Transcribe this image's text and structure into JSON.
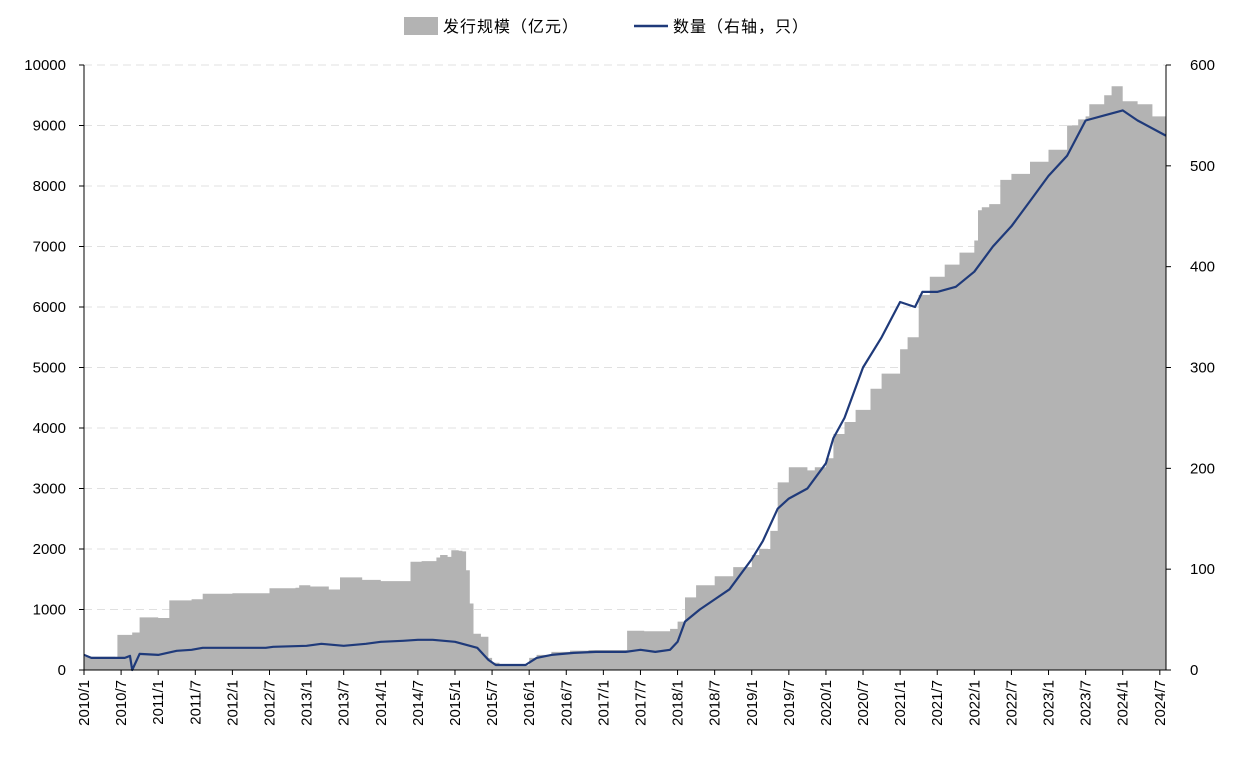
{
  "chart_data": {
    "type": "area",
    "colors": {
      "area": "#b3b3b3",
      "line": "#1f3a7a",
      "grid": "#e0e0e0",
      "axis": "#000000"
    },
    "legend": {
      "placement": "top-center",
      "items": [
        {
          "label": "发行规模（亿元）",
          "kind": "area"
        },
        {
          "label": "数量（右轴，只）",
          "kind": "line"
        }
      ]
    },
    "y_left": {
      "min": 0,
      "max": 10000,
      "ticks": [
        "0",
        "1000",
        "2000",
        "3000",
        "4000",
        "5000",
        "6000",
        "7000",
        "8000",
        "9000",
        "10000"
      ]
    },
    "y_right": {
      "min": 0,
      "max": 600,
      "ticks": [
        "0",
        "100",
        "200",
        "300",
        "400",
        "500",
        "600"
      ]
    },
    "x_range": [
      2010.0,
      2024.5833
    ],
    "x_ticks": [
      "2010/1",
      "2010/7",
      "2011/1",
      "2011/7",
      "2012/1",
      "2012/7",
      "2013/1",
      "2013/7",
      "2014/1",
      "2014/7",
      "2015/1",
      "2015/7",
      "2016/1",
      "2016/7",
      "2017/1",
      "2017/7",
      "2018/1",
      "2018/7",
      "2019/1",
      "2019/7",
      "2020/1",
      "2020/7",
      "2021/1",
      "2021/7",
      "2022/1",
      "2022/7",
      "2023/1",
      "2023/7",
      "2024/1",
      "2024/7"
    ],
    "grid": "horizontal-dashed",
    "series": [
      {
        "name": "发行规模（亿元）",
        "axis": "left",
        "type": "area",
        "x": [
          2010.0,
          2010.42,
          2010.45,
          2010.65,
          2010.75,
          2011.0,
          2011.15,
          2011.45,
          2011.6,
          2012.0,
          2012.45,
          2012.5,
          2012.85,
          2012.9,
          2013.05,
          2013.3,
          2013.45,
          2013.75,
          2014.0,
          2014.4,
          2014.55,
          2014.75,
          2014.8,
          2014.9,
          2014.95,
          2015.05,
          2015.1,
          2015.15,
          2015.2,
          2015.25,
          2015.35,
          2015.45,
          2015.5,
          2015.6,
          2015.95,
          2016.0,
          2016.1,
          2016.3,
          2016.55,
          2016.8,
          2017.0,
          2017.3,
          2017.32,
          2017.55,
          2017.9,
          2018.0,
          2018.1,
          2018.25,
          2018.5,
          2018.75,
          2019.0,
          2019.1,
          2019.25,
          2019.35,
          2019.5,
          2019.75,
          2019.85,
          2020.0,
          2020.1,
          2020.25,
          2020.4,
          2020.5,
          2020.6,
          2020.75,
          2021.0,
          2021.1,
          2021.25,
          2021.4,
          2021.6,
          2021.8,
          2022.0,
          2022.05,
          2022.1,
          2022.2,
          2022.35,
          2022.5,
          2022.75,
          2023.0,
          2023.25,
          2023.4,
          2023.5,
          2023.55,
          2023.75,
          2023.85,
          2024.0,
          2024.2,
          2024.4,
          2024.58
        ],
        "y": [
          220,
          200,
          580,
          620,
          870,
          860,
          1150,
          1170,
          1260,
          1270,
          1270,
          1350,
          1360,
          1400,
          1380,
          1330,
          1530,
          1490,
          1470,
          1790,
          1800,
          1860,
          1900,
          1870,
          1980,
          1970,
          1960,
          1650,
          1100,
          600,
          550,
          200,
          120,
          80,
          80,
          200,
          250,
          300,
          320,
          330,
          330,
          330,
          650,
          640,
          680,
          800,
          1200,
          1400,
          1550,
          1700,
          1900,
          2000,
          2300,
          3100,
          3350,
          3300,
          3350,
          3500,
          3900,
          4100,
          4300,
          4300,
          4650,
          4900,
          5300,
          5500,
          6200,
          6500,
          6700,
          6900,
          7100,
          7600,
          7650,
          7700,
          8100,
          8200,
          8400,
          8600,
          9000,
          9100,
          9150,
          9350,
          9500,
          9650,
          9400,
          9350,
          9150,
          9050
        ]
      },
      {
        "name": "数量（右轴，只）",
        "axis": "right",
        "type": "line",
        "x": [
          2010.0,
          2010.1,
          2010.4,
          2010.55,
          2010.62,
          2010.65,
          2010.75,
          2011.0,
          2011.25,
          2011.45,
          2011.6,
          2012.0,
          2012.45,
          2012.55,
          2013.0,
          2013.2,
          2013.5,
          2013.8,
          2014.0,
          2014.3,
          2014.5,
          2014.7,
          2015.0,
          2015.15,
          2015.3,
          2015.45,
          2015.55,
          2015.95,
          2016.1,
          2016.3,
          2016.6,
          2016.9,
          2017.3,
          2017.5,
          2017.7,
          2017.9,
          2018.0,
          2018.1,
          2018.3,
          2018.5,
          2018.7,
          2018.8,
          2019.0,
          2019.15,
          2019.35,
          2019.5,
          2019.75,
          2020.0,
          2020.1,
          2020.25,
          2020.5,
          2020.75,
          2021.0,
          2021.2,
          2021.3,
          2021.5,
          2021.75,
          2022.0,
          2022.25,
          2022.5,
          2022.75,
          2023.0,
          2023.25,
          2023.5,
          2023.75,
          2024.0,
          2024.2,
          2024.58
        ],
        "y": [
          15,
          12,
          12,
          12,
          14,
          0,
          16,
          15,
          19,
          20,
          22,
          22,
          22,
          23,
          24,
          26,
          24,
          26,
          28,
          29,
          30,
          30,
          28,
          25,
          22,
          10,
          5,
          5,
          12,
          15,
          17,
          18,
          18,
          20,
          18,
          20,
          28,
          48,
          60,
          70,
          80,
          90,
          110,
          128,
          160,
          170,
          180,
          205,
          230,
          250,
          300,
          330,
          365,
          360,
          375,
          375,
          380,
          395,
          420,
          440,
          465,
          490,
          510,
          545,
          550,
          555,
          545,
          530
        ]
      }
    ]
  }
}
